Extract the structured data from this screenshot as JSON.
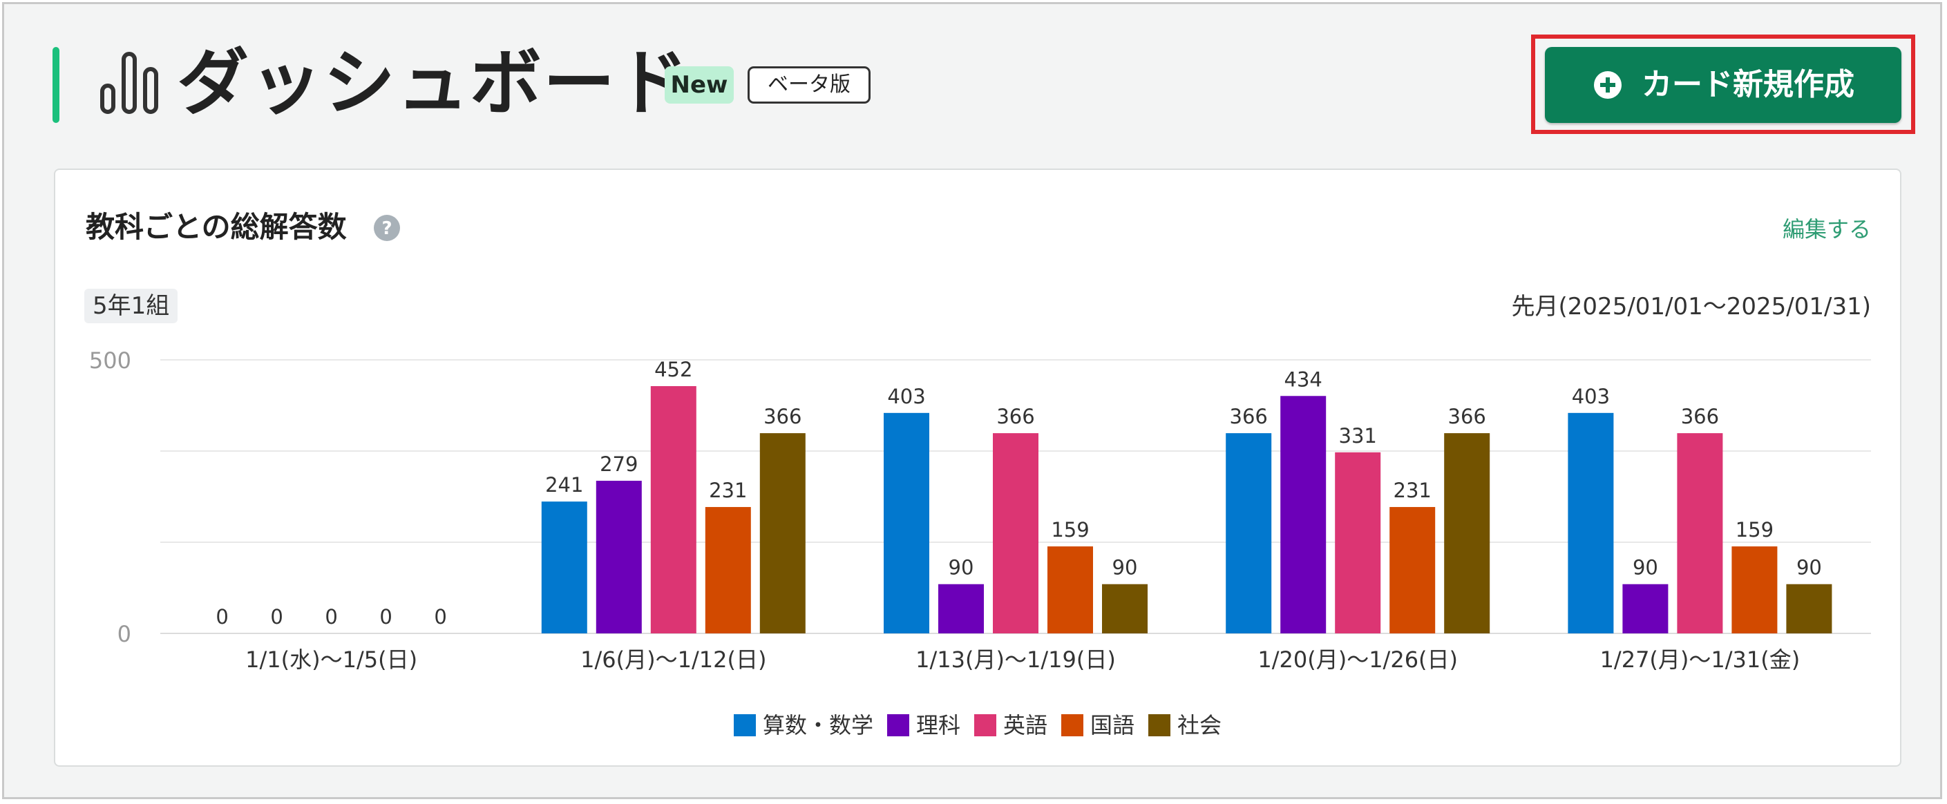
{
  "header": {
    "title": "ダッシュボード",
    "badge_new": "New",
    "badge_beta": "ベータ版",
    "title_icon": "bar-chart-icon",
    "create_button_label": "カード新規作成",
    "create_button_icon": "plus-circle-icon",
    "create_button_color": "#0b7f57",
    "highlight_color": "#e0282d"
  },
  "card": {
    "title": "教科ごとの総解答数",
    "help_icon": "question-circle-icon",
    "edit_link": "編集する",
    "class_label": "5年1組",
    "period": "先月(2025/01/01～2025/01/31)"
  },
  "chart_data": {
    "type": "bar",
    "categories": [
      "1/1(水)～1/5(日)",
      "1/6(月)～1/12(日)",
      "1/13(月)～1/19(日)",
      "1/20(月)～1/26(日)",
      "1/27(月)～1/31(金)"
    ],
    "series": [
      {
        "name": "算数・数学",
        "color": "#0278ce",
        "values": [
          0,
          241,
          403,
          366,
          403
        ],
        "labels": [
          "0",
          "241",
          "403",
          "366",
          "403"
        ]
      },
      {
        "name": "理科",
        "color": "#6c00b8",
        "values": [
          0,
          279,
          90,
          434,
          90
        ],
        "labels": [
          "0",
          "279",
          "90",
          "434",
          "90"
        ]
      },
      {
        "name": "英語",
        "color": "#dc3573",
        "values": [
          0,
          452,
          366,
          331,
          366
        ],
        "labels": [
          "0",
          "452",
          "366",
          "331",
          "366"
        ]
      },
      {
        "name": "国語",
        "color": "#d24a00",
        "values": [
          0,
          231,
          159,
          231,
          159
        ],
        "labels": [
          "0",
          "231",
          "159",
          "231",
          "159"
        ]
      },
      {
        "name": "社会",
        "color": "#735300",
        "values": [
          0,
          366,
          90,
          366,
          90
        ],
        "labels": [
          "0",
          "366",
          "90",
          "366",
          "90"
        ]
      }
    ],
    "y_tick_labels": [
      "500",
      "0"
    ],
    "ylim": [
      0,
      500
    ],
    "grid": true,
    "legend_position": "bottom-center"
  }
}
